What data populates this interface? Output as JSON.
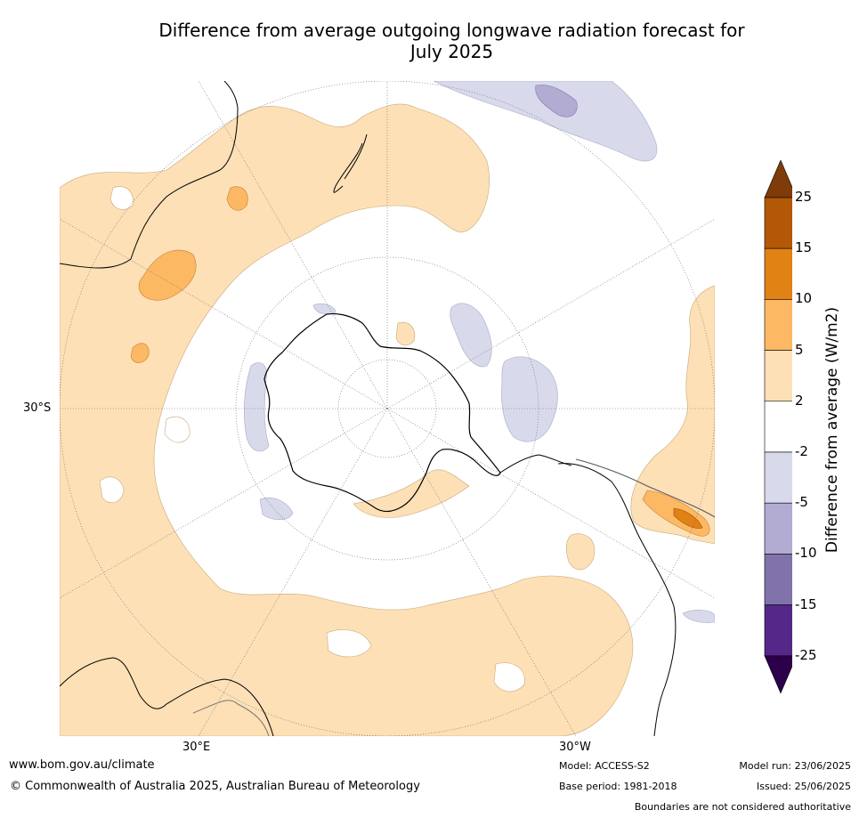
{
  "title_line1": "Difference from average outgoing longwave radiation forecast for",
  "title_line2": "July 2025",
  "axis_labels": {
    "lat_left": "30°S",
    "lon_bottom_left": "30°E",
    "lon_bottom_right": "30°W"
  },
  "colorbar": {
    "label": "Difference from average (W/m2)",
    "ticks": [
      "25",
      "15",
      "10",
      "5",
      "2",
      "-2",
      "-5",
      "-10",
      "-15",
      "-25"
    ],
    "colors": [
      "#7f3b08",
      "#b35806",
      "#e08214",
      "#fdb863",
      "#fee0b6",
      "#ffffff",
      "#d8daeb",
      "#b2abd2",
      "#8073ac",
      "#542788",
      "#2d004b"
    ]
  },
  "footer": {
    "url": "www.bom.gov.au/climate",
    "copyright": "© Commonwealth of Australia 2025, Australian Bureau of Meteorology",
    "model": "Model: ACCESS-S2",
    "base_period": "Base period: 1981-2018",
    "model_run": "Model run: 23/06/2025",
    "issued": "Issued: 25/06/2025",
    "disclaimer": "Boundaries are not considered authoritative"
  }
}
